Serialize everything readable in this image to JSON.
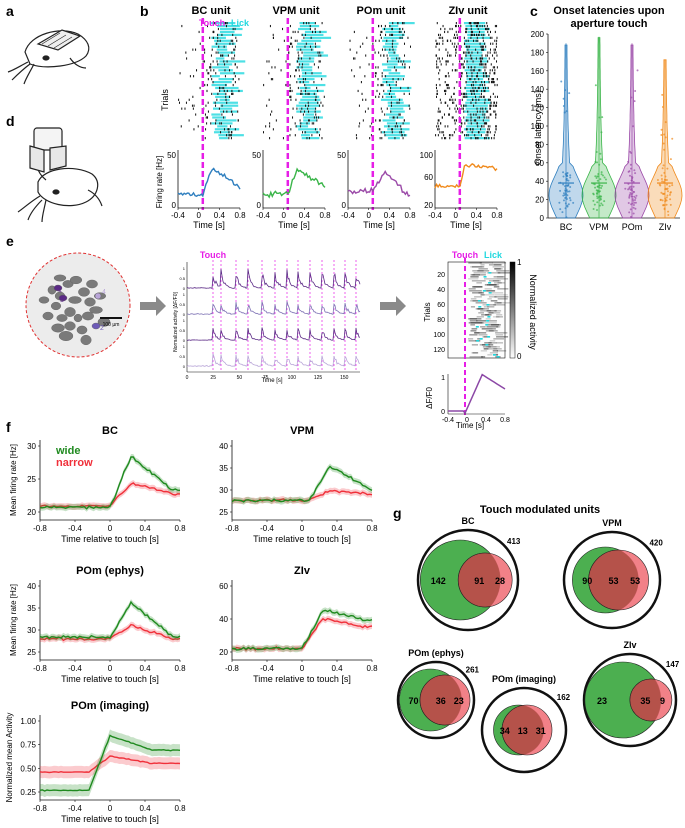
{
  "panel_letters": [
    "a",
    "b",
    "c",
    "d",
    "e",
    "f",
    "g"
  ],
  "colors": {
    "bc": "#2f7fbf",
    "vpm": "#3bb54a",
    "pom": "#9b4aa8",
    "zlv": "#f08a1c",
    "touch": "#e61ee6",
    "lick": "#21d8df",
    "wide": "#1f8a1f",
    "narrow": "#f0303a",
    "venn_wide": "#4caf50",
    "venn_narrow": "#f06b73",
    "venn_overlap": "#b5524a",
    "purple_dark": "#5b2a86",
    "purple_light": "#b9a6d8"
  },
  "panel_b": {
    "touch_label": "Touch",
    "lick_label": "Lick",
    "trials_label": "Trials",
    "firing_label": "Firing rate [Hz]",
    "time_label": "Time [s]",
    "units": [
      {
        "title": "BC unit",
        "ymax": "50",
        "ymin": "0"
      },
      {
        "title": "VPM unit",
        "ymax": "50",
        "ymin": "0"
      },
      {
        "title": "POm unit",
        "ymax": "50",
        "ymin": "0"
      },
      {
        "title": "ZIv unit",
        "ymax": "100",
        "ymid": "60",
        "ymin": "20"
      }
    ],
    "xticks": [
      "-0.4",
      "0",
      "0.4",
      "0.8"
    ]
  },
  "panel_c": {
    "title_line1": "Onset latencies upon",
    "title_line2": "aperture touch",
    "ylabel": "Onset latency [ms]",
    "yticks": [
      "0",
      "20",
      "40",
      "60",
      "80",
      "100",
      "120",
      "140",
      "160",
      "180",
      "200"
    ],
    "categories": [
      "BC",
      "VPM",
      "POm",
      "ZIv"
    ]
  },
  "panel_e": {
    "scale_label": "100 µm",
    "roi_labels": [
      "1",
      "2",
      "3",
      "4"
    ],
    "touch_label": "Touch",
    "trace_ylabel": "Normalized activity [ΔF/F0]",
    "trace_yticks": [
      "0",
      "0.5",
      "1"
    ],
    "trace_xticks": [
      "0",
      "25",
      "50",
      "75",
      "100",
      "125",
      "150"
    ],
    "trace_xlabel": "Time [s]",
    "raster_touch": "Touch",
    "raster_lick": "Lick",
    "raster_ylabel": "Trials",
    "raster_yticks": [
      "20",
      "40",
      "60",
      "80",
      "100",
      "120"
    ],
    "colorbar_label": "Normalized activity",
    "colorbar_ticks": [
      "1",
      "0"
    ],
    "mean_ylabel": "ΔF/F0",
    "mean_yticks": [
      "1",
      "0"
    ],
    "mean_xticks": [
      "-0.4",
      "0",
      "0.4",
      "0.8"
    ],
    "mean_xlabel": "Time [s]"
  },
  "panel_f": {
    "legend_wide": "wide",
    "legend_narrow": "narrow",
    "ylabel_rate": "Mean firing rate [Hz]",
    "ylabel_norm": "Normalized mean Activity",
    "xlabel": "Time relative to touch [s]",
    "plots": [
      {
        "title": "BC",
        "yticks": [
          "20",
          "25",
          "30"
        ],
        "xticks": [
          "-0.8",
          "-0.4",
          "0",
          "0.4",
          "0.8"
        ]
      },
      {
        "title": "VPM",
        "yticks": [
          "25",
          "30",
          "35",
          "40"
        ],
        "xticks": [
          "-0.8",
          "-0.4",
          "0",
          "0.4",
          "0.8"
        ]
      },
      {
        "title": "POm (ephys)",
        "yticks": [
          "25",
          "30",
          "35",
          "40"
        ],
        "xticks": [
          "-0.8",
          "-0.4",
          "0",
          "0.4",
          "0.8"
        ]
      },
      {
        "title": "ZIv",
        "yticks": [
          "20",
          "40",
          "60"
        ],
        "xticks": [
          "-0.8",
          "-0.4",
          "0",
          "0.4",
          "0.8"
        ]
      },
      {
        "title": "POm (imaging)",
        "yticks": [
          "0.25",
          "0.50",
          "0.75",
          "1.00"
        ],
        "xticks": [
          "-0.8",
          "-0.4",
          "0",
          "0.4",
          "0.8"
        ]
      }
    ]
  },
  "panel_g": {
    "title": "Touch modulated units",
    "venns": [
      {
        "title": "BC",
        "total": "413",
        "wide": "142",
        "both": "91",
        "narrow": "28"
      },
      {
        "title": "VPM",
        "total": "420",
        "wide": "90",
        "both": "53",
        "narrow": "53"
      },
      {
        "title": "POm (ephys)",
        "total": "261",
        "wide": "70",
        "both": "36",
        "narrow": "23"
      },
      {
        "title": "POm (imaging)",
        "total": "162",
        "wide": "34",
        "both": "13",
        "narrow": "31"
      },
      {
        "title": "ZIv",
        "total": "147",
        "wide": "23",
        "both": "35",
        "narrow": "9"
      }
    ]
  }
}
